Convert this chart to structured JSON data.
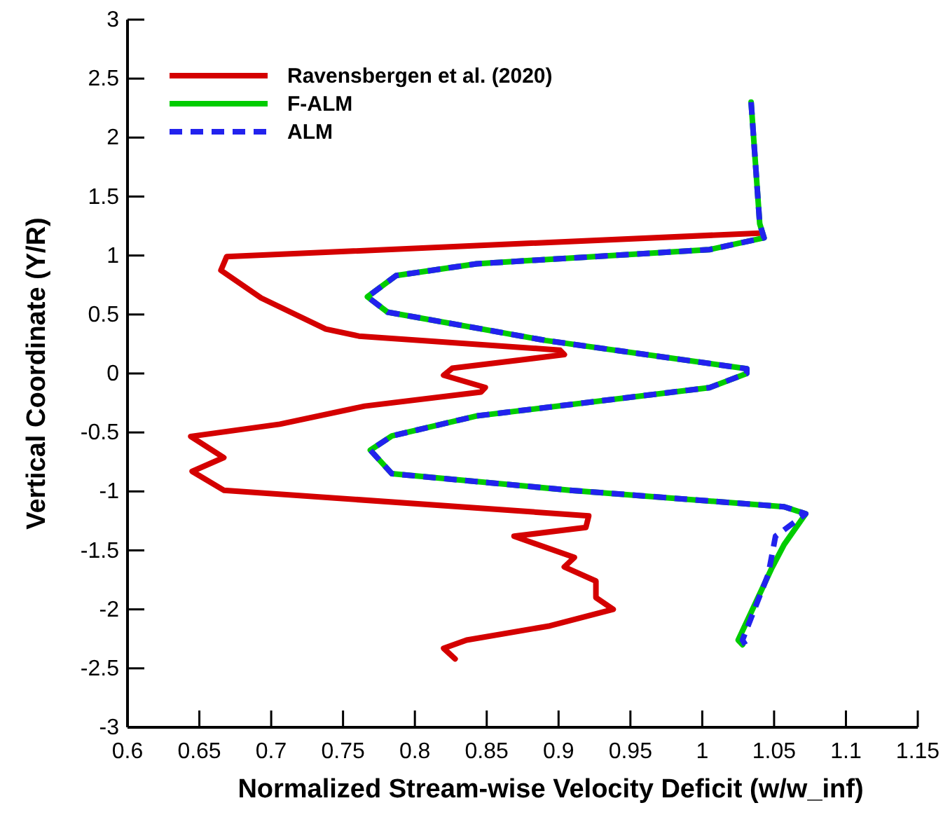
{
  "chart_data": {
    "type": "line",
    "xlabel": "Normalized Stream-wise Velocity Deficit  (w/w_inf)",
    "ylabel": "Vertical Coordinate  (Y/R)",
    "xlim": [
      0.6,
      1.15
    ],
    "xticks": [
      0.6,
      0.65,
      0.7,
      0.75,
      0.8,
      0.85,
      0.9,
      0.95,
      1,
      1.05,
      1.1,
      1.15
    ],
    "ylim": [
      -3,
      3
    ],
    "yticks": [
      -3,
      -2.5,
      -2,
      -1.5,
      -1,
      -0.5,
      0,
      0.5,
      1,
      1.5,
      2,
      2.5,
      3
    ],
    "grid": false,
    "legend": "top left",
    "marker": "none",
    "series": [
      {
        "name": "Ravensbergen et al. (2020)",
        "color": "#d40000",
        "line_style": "solid",
        "x": [
          1.04,
          0.669,
          0.665,
          0.693,
          0.738,
          0.761,
          0.901,
          0.904,
          0.826,
          0.82,
          0.849,
          0.846,
          0.765,
          0.706,
          0.644,
          0.667,
          0.645,
          0.667,
          0.921,
          0.919,
          0.869,
          0.911,
          0.904,
          0.926,
          0.926,
          0.938,
          0.894,
          0.836,
          0.82,
          0.828
        ],
        "values": [
          1.19,
          0.99,
          0.875,
          0.64,
          0.376,
          0.317,
          0.198,
          0.16,
          0.044,
          -0.015,
          -0.119,
          -0.158,
          -0.277,
          -0.43,
          -0.534,
          -0.713,
          -0.83,
          -0.99,
          -1.207,
          -1.306,
          -1.38,
          -1.56,
          -1.64,
          -1.76,
          -1.9,
          -2.0,
          -2.14,
          -2.26,
          -2.33,
          -2.42
        ]
      },
      {
        "name": "F-ALM",
        "color": "#00cc00",
        "line_style": "solid",
        "x": [
          1.034,
          1.04,
          1.043,
          1.005,
          0.843,
          0.787,
          0.767,
          0.781,
          0.891,
          1.031,
          1.031,
          1.005,
          0.843,
          0.784,
          0.769,
          0.784,
          0.908,
          1.057,
          1.072,
          1.057,
          1.048,
          1.025,
          1.028
        ],
        "values": [
          2.3,
          1.27,
          1.15,
          1.05,
          0.93,
          0.83,
          0.65,
          0.52,
          0.28,
          0.04,
          0,
          -0.12,
          -0.36,
          -0.53,
          -0.65,
          -0.85,
          -0.99,
          -1.13,
          -1.19,
          -1.45,
          -1.66,
          -2.26,
          -2.3
        ]
      },
      {
        "name": "ALM",
        "color": "#2222ee",
        "line_style": "dashed",
        "x": [
          1.034,
          1.04,
          1.043,
          1.005,
          0.843,
          0.787,
          0.767,
          0.781,
          0.891,
          1.031,
          1.031,
          1.005,
          0.843,
          0.784,
          0.769,
          0.784,
          0.908,
          1.057,
          1.072,
          1.051,
          1.046,
          1.028,
          1.03
        ],
        "values": [
          2.3,
          1.27,
          1.15,
          1.05,
          0.93,
          0.83,
          0.65,
          0.52,
          0.28,
          0.04,
          0,
          -0.12,
          -0.36,
          -0.53,
          -0.65,
          -0.85,
          -0.99,
          -1.13,
          -1.19,
          -1.38,
          -1.7,
          -2.26,
          -2.3
        ]
      }
    ]
  }
}
